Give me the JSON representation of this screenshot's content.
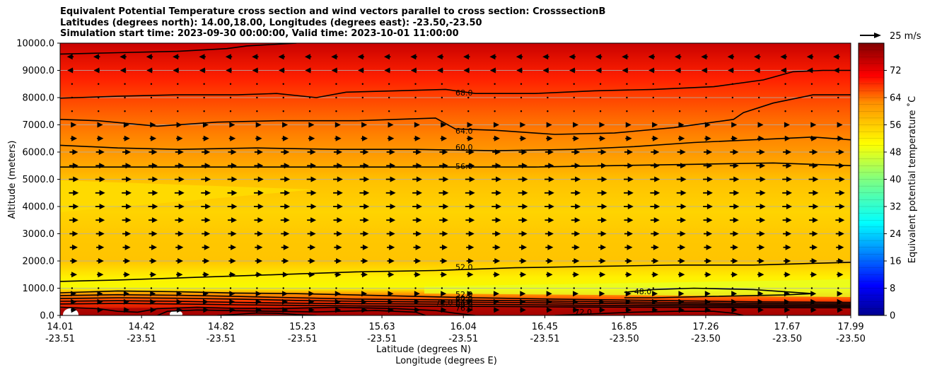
{
  "title_lines": [
    "Equivalent Potential Temperature cross section and wind vectors parallel to cross section: CrosssectionB",
    "Latitudes (degrees north): 14.00,18.00, Longitudes (degrees east): -23.50,-23.50",
    "Simulation start time: 2023-09-30 00:00:00, Valid time: 2023-10-01 11:00:00"
  ],
  "chart_data": {
    "type": "heatmap",
    "subtype": "filled contour cross section with wind vectors",
    "xlabel_1": "Latitude (degrees N)",
    "xlabel_2": "Longitude (degrees E)",
    "ylabel": "Altitude (meters)",
    "ylim": [
      0,
      10000
    ],
    "xlim": [
      14.01,
      17.99
    ],
    "y_ticks": [
      "0.0",
      "1000.0",
      "2000.0",
      "3000.0",
      "4000.0",
      "5000.0",
      "6000.0",
      "7000.0",
      "8000.0",
      "9000.0",
      "10000.0"
    ],
    "y_tick_values": [
      0,
      1000,
      2000,
      3000,
      4000,
      5000,
      6000,
      7000,
      8000,
      9000,
      10000
    ],
    "x_ticks_lat": [
      "14.01",
      "14.42",
      "14.82",
      "15.23",
      "15.63",
      "16.04",
      "16.45",
      "16.85",
      "17.26",
      "17.67",
      "17.99"
    ],
    "x_ticks_lon": [
      "-23.51",
      "-23.51",
      "-23.51",
      "-23.51",
      "-23.51",
      "-23.51",
      "-23.51",
      "-23.50",
      "-23.50",
      "-23.50",
      "-23.50"
    ],
    "grid": "horizontal",
    "colorbar": {
      "label": "Equivalent potential temperature ˚C",
      "range": [
        0,
        80
      ],
      "ticks": [
        "0",
        "8",
        "16",
        "24",
        "32",
        "40",
        "48",
        "56",
        "64",
        "72"
      ],
      "tick_values": [
        0,
        8,
        16,
        24,
        32,
        40,
        48,
        56,
        64,
        72
      ],
      "colormap": "jet"
    },
    "contour_labels": [
      {
        "label": "68.0",
        "lat": 16.0,
        "alt": 8100
      },
      {
        "label": "64.0",
        "lat": 16.0,
        "alt": 6700
      },
      {
        "label": "60.0",
        "lat": 16.0,
        "alt": 6100
      },
      {
        "label": "56.0",
        "lat": 16.0,
        "alt": 5400
      },
      {
        "label": "52.0",
        "lat": 16.0,
        "alt": 1700
      },
      {
        "label": "52.0",
        "lat": 16.0,
        "alt": 700
      },
      {
        "label": "60.0",
        "lat": 16.0,
        "alt": 550
      },
      {
        "label": "64.0",
        "lat": 16.0,
        "alt": 430
      },
      {
        "label": "68.0",
        "lat": 16.0,
        "alt": 320
      },
      {
        "label": "76.0",
        "lat": 16.0,
        "alt": 200
      },
      {
        "label": "48.0",
        "lat": 16.9,
        "alt": 800
      },
      {
        "label": "72.0",
        "lat": 15.9,
        "alt": 400
      },
      {
        "label": "72.0",
        "lat": 16.6,
        "alt": 50
      }
    ],
    "contour_lines": [
      {
        "level": 72,
        "points": [
          [
            14.01,
            9600
          ],
          [
            14.3,
            9650
          ],
          [
            14.6,
            9700
          ],
          [
            14.85,
            9800
          ],
          [
            14.95,
            9900
          ],
          [
            15.2,
            10000
          ]
        ]
      },
      {
        "level": 68,
        "points": [
          [
            14.01,
            7980
          ],
          [
            14.3,
            8050
          ],
          [
            14.6,
            8100
          ],
          [
            14.9,
            8100
          ],
          [
            15.1,
            8150
          ],
          [
            15.3,
            8000
          ],
          [
            15.45,
            8200
          ],
          [
            15.7,
            8250
          ],
          [
            15.95,
            8300
          ],
          [
            16.1,
            8150
          ],
          [
            16.4,
            8150
          ],
          [
            16.7,
            8250
          ],
          [
            17.0,
            8300
          ],
          [
            17.3,
            8400
          ],
          [
            17.55,
            8650
          ],
          [
            17.7,
            8950
          ],
          [
            17.85,
            9000
          ],
          [
            17.99,
            9000
          ]
        ]
      },
      {
        "level": 64,
        "points": [
          [
            14.01,
            7200
          ],
          [
            14.2,
            7150
          ],
          [
            14.35,
            7050
          ],
          [
            14.5,
            6950
          ],
          [
            14.8,
            7100
          ],
          [
            15.1,
            7150
          ],
          [
            15.5,
            7150
          ],
          [
            15.9,
            7250
          ],
          [
            16.0,
            6850
          ],
          [
            16.2,
            6800
          ],
          [
            16.5,
            6650
          ],
          [
            16.8,
            6700
          ],
          [
            17.1,
            6900
          ],
          [
            17.3,
            7100
          ],
          [
            17.4,
            7200
          ],
          [
            17.45,
            7450
          ],
          [
            17.6,
            7800
          ],
          [
            17.8,
            8100
          ],
          [
            17.99,
            8100
          ]
        ]
      },
      {
        "level": 60,
        "points": [
          [
            14.01,
            6250
          ],
          [
            14.3,
            6150
          ],
          [
            14.6,
            6100
          ],
          [
            15.0,
            6150
          ],
          [
            15.4,
            6100
          ],
          [
            15.8,
            6100
          ],
          [
            16.2,
            6050
          ],
          [
            16.6,
            6100
          ],
          [
            16.9,
            6200
          ],
          [
            17.2,
            6350
          ],
          [
            17.5,
            6450
          ],
          [
            17.8,
            6550
          ],
          [
            17.99,
            6450
          ]
        ]
      },
      {
        "level": 56,
        "points": [
          [
            14.01,
            5450
          ],
          [
            14.4,
            5450
          ],
          [
            14.8,
            5450
          ],
          [
            15.2,
            5450
          ],
          [
            15.6,
            5450
          ],
          [
            16.0,
            5450
          ],
          [
            16.4,
            5450
          ],
          [
            16.8,
            5500
          ],
          [
            17.2,
            5550
          ],
          [
            17.6,
            5600
          ],
          [
            17.99,
            5500
          ]
        ]
      },
      {
        "level": 52,
        "points": [
          [
            14.01,
            1250
          ],
          [
            14.3,
            1300
          ],
          [
            14.7,
            1400
          ],
          [
            15.1,
            1500
          ],
          [
            15.5,
            1600
          ],
          [
            15.9,
            1650
          ],
          [
            16.3,
            1750
          ],
          [
            16.7,
            1800
          ],
          [
            17.1,
            1850
          ],
          [
            17.5,
            1850
          ],
          [
            17.99,
            1950
          ]
        ]
      },
      {
        "level": 48,
        "points": [
          [
            16.85,
            850
          ],
          [
            17.0,
            950
          ],
          [
            17.2,
            1000
          ],
          [
            17.5,
            950
          ],
          [
            17.8,
            800
          ],
          [
            17.65,
            750
          ],
          [
            17.3,
            700
          ],
          [
            17.0,
            650
          ],
          [
            16.85,
            650
          ]
        ]
      },
      {
        "level": 52,
        "points": [
          [
            14.01,
            830
          ],
          [
            14.3,
            900
          ],
          [
            14.6,
            870
          ],
          [
            14.9,
            820
          ],
          [
            15.2,
            800
          ],
          [
            15.5,
            750
          ],
          [
            15.8,
            700
          ],
          [
            16.1,
            650
          ],
          [
            16.5,
            600
          ],
          [
            17.0,
            550
          ],
          [
            17.5,
            500
          ],
          [
            17.99,
            480
          ]
        ]
      },
      {
        "level": 56,
        "points": [
          [
            14.01,
            730
          ],
          [
            14.3,
            760
          ],
          [
            14.6,
            740
          ],
          [
            14.9,
            700
          ],
          [
            15.2,
            650
          ],
          [
            15.5,
            600
          ],
          [
            15.8,
            580
          ],
          [
            16.2,
            550
          ],
          [
            16.6,
            520
          ],
          [
            17.0,
            480
          ],
          [
            17.5,
            440
          ],
          [
            17.99,
            430
          ]
        ]
      },
      {
        "level": 60,
        "points": [
          [
            14.01,
            620
          ],
          [
            14.3,
            650
          ],
          [
            14.6,
            630
          ],
          [
            14.9,
            600
          ],
          [
            15.2,
            550
          ],
          [
            15.5,
            520
          ],
          [
            15.8,
            500
          ],
          [
            16.2,
            480
          ],
          [
            16.6,
            450
          ],
          [
            17.0,
            420
          ],
          [
            17.5,
            390
          ],
          [
            17.99,
            380
          ]
        ]
      },
      {
        "level": 64,
        "points": [
          [
            14.01,
            520
          ],
          [
            14.3,
            540
          ],
          [
            14.6,
            520
          ],
          [
            14.9,
            480
          ],
          [
            15.2,
            450
          ],
          [
            15.5,
            430
          ],
          [
            15.8,
            420
          ],
          [
            16.2,
            400
          ],
          [
            16.6,
            380
          ],
          [
            17.0,
            360
          ],
          [
            17.5,
            340
          ],
          [
            17.99,
            330
          ]
        ]
      },
      {
        "level": 68,
        "points": [
          [
            14.01,
            420
          ],
          [
            14.3,
            440
          ],
          [
            14.6,
            420
          ],
          [
            14.9,
            390
          ],
          [
            15.2,
            370
          ],
          [
            15.5,
            350
          ],
          [
            15.8,
            340
          ],
          [
            16.2,
            330
          ],
          [
            16.6,
            310
          ],
          [
            17.0,
            300
          ],
          [
            17.5,
            290
          ],
          [
            17.99,
            280
          ]
        ]
      },
      {
        "level": 72,
        "points": [
          [
            14.01,
            300
          ],
          [
            14.2,
            250
          ],
          [
            14.3,
            150
          ],
          [
            14.4,
            120
          ],
          [
            14.5,
            250
          ],
          [
            14.7,
            300
          ],
          [
            14.9,
            260
          ],
          [
            15.1,
            250
          ],
          [
            15.4,
            300
          ],
          [
            15.7,
            250
          ],
          [
            15.9,
            180
          ],
          [
            16.0,
            80
          ],
          [
            16.1,
            0
          ]
        ]
      },
      {
        "level": 72,
        "points": [
          [
            16.5,
            0
          ],
          [
            16.7,
            60
          ],
          [
            16.9,
            120
          ],
          [
            17.1,
            150
          ],
          [
            17.3,
            150
          ],
          [
            17.4,
            80
          ],
          [
            17.45,
            0
          ]
        ]
      },
      {
        "level": 76,
        "points": [
          [
            14.5,
            0
          ],
          [
            14.55,
            150
          ],
          [
            14.7,
            200
          ],
          [
            15.0,
            160
          ],
          [
            15.3,
            130
          ],
          [
            15.6,
            180
          ],
          [
            15.8,
            120
          ],
          [
            15.85,
            0
          ]
        ]
      },
      {
        "level": 80,
        "points": [
          [
            14.8,
            0
          ],
          [
            14.9,
            40
          ],
          [
            15.0,
            90
          ],
          [
            15.1,
            80
          ],
          [
            15.2,
            30
          ],
          [
            15.3,
            0
          ]
        ]
      }
    ],
    "wind_vector_key": {
      "label": "25 m/s"
    },
    "wind_vectors": {
      "x_spacing_lat": 0.133,
      "y_levels": [
        200,
        500,
        800,
        1000,
        1500,
        2000,
        2500,
        3000,
        3500,
        4000,
        4500,
        5000,
        5500,
        6000,
        6500,
        7000,
        7500,
        8000,
        8500,
        9000,
        9500
      ],
      "u_by_level": [
        4,
        3,
        3,
        2,
        5,
        6,
        7,
        8,
        9,
        10,
        10,
        10,
        9,
        8,
        5,
        3,
        2,
        0,
        -2,
        -4,
        -5
      ],
      "unit": "m/s"
    }
  }
}
